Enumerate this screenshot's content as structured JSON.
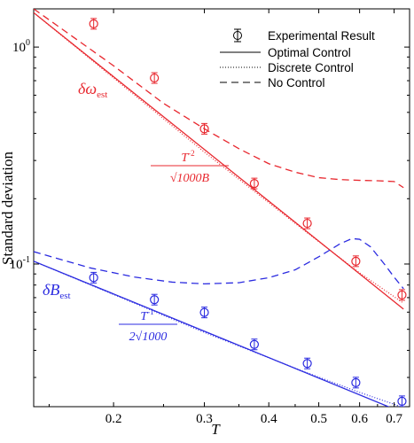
{
  "chart_data": {
    "type": "line",
    "xlabel": "T",
    "ylabel": "Standard deviation",
    "xscale": "log",
    "yscale": "log",
    "xlim": [
      0.14,
      0.75
    ],
    "ylim": [
      0.022,
      1.5
    ],
    "xticks": [
      0.2,
      0.3,
      0.4,
      0.5,
      0.6,
      0.7
    ],
    "xtick_labels": [
      "0.2",
      "0.3",
      "0.4",
      "0.5",
      "0.6",
      "0.7"
    ],
    "yticks": [
      0.1,
      1
    ],
    "ytick_labels": {
      "tick_01": {
        "base": "10",
        "exp": "-1"
      },
      "tick_1": {
        "base": "10",
        "exp": "0"
      }
    },
    "grid": false,
    "legend_position": "top-right",
    "legend": {
      "experimental": "Experimental Result",
      "optimal": "Optimal Control",
      "discrete": "Discrete Control",
      "none": "No Control"
    },
    "colors": {
      "omega": "#e8282f",
      "B": "#2b2be0",
      "legend": "#000000"
    },
    "annotations": {
      "omega_label": {
        "symbol": "δω",
        "subscript": "est"
      },
      "omega_formula": {
        "numerator": "T",
        "num_exp": "-2",
        "denominator": "√1000B"
      },
      "B_label": {
        "symbol": "δB",
        "subscript": "est"
      },
      "B_formula": {
        "numerator": "T",
        "num_exp": "-1",
        "denominator": "2√1000"
      }
    },
    "series": [
      {
        "group": "omega",
        "kind": "experimental",
        "x": [
          0.183,
          0.24,
          0.3,
          0.375,
          0.475,
          0.59,
          0.725
        ],
        "y": [
          1.28,
          0.72,
          0.42,
          0.235,
          0.154,
          0.103,
          0.072
        ]
      },
      {
        "group": "omega",
        "kind": "optimal",
        "x": [
          0.14,
          0.73
        ],
        "y": [
          1.44,
          0.062
        ]
      },
      {
        "group": "omega",
        "kind": "discrete",
        "x": [
          0.14,
          0.3,
          0.47,
          0.6,
          0.73
        ],
        "y": [
          1.44,
          0.328,
          0.142,
          0.091,
          0.066
        ]
      },
      {
        "group": "omega",
        "kind": "none",
        "x": [
          0.14,
          0.2,
          0.25,
          0.3,
          0.35,
          0.4,
          0.45,
          0.5,
          0.55,
          0.6,
          0.65,
          0.7,
          0.73
        ],
        "y": [
          1.5,
          0.82,
          0.55,
          0.42,
          0.34,
          0.29,
          0.265,
          0.25,
          0.245,
          0.243,
          0.242,
          0.24,
          0.225
        ]
      },
      {
        "group": "B",
        "kind": "experimental",
        "x": [
          0.183,
          0.24,
          0.3,
          0.375,
          0.475,
          0.59,
          0.725
        ],
        "y": [
          0.0865,
          0.0685,
          0.0598,
          0.0426,
          0.0348,
          0.0284,
          0.0233
        ]
      },
      {
        "group": "B",
        "kind": "optimal",
        "x": [
          0.14,
          0.73
        ],
        "y": [
          0.103,
          0.0206
        ]
      },
      {
        "group": "B",
        "kind": "discrete",
        "x": [
          0.14,
          0.3,
          0.47,
          0.6,
          0.73
        ],
        "y": [
          0.103,
          0.0484,
          0.0318,
          0.0256,
          0.0218
        ]
      },
      {
        "group": "B",
        "kind": "none",
        "x": [
          0.14,
          0.18,
          0.22,
          0.26,
          0.3,
          0.35,
          0.4,
          0.45,
          0.5,
          0.55,
          0.58,
          0.6,
          0.63,
          0.67,
          0.7,
          0.73
        ],
        "y": [
          0.114,
          0.096,
          0.087,
          0.0825,
          0.081,
          0.082,
          0.0865,
          0.094,
          0.108,
          0.124,
          0.131,
          0.13,
          0.12,
          0.1,
          0.087,
          0.077
        ]
      }
    ]
  }
}
